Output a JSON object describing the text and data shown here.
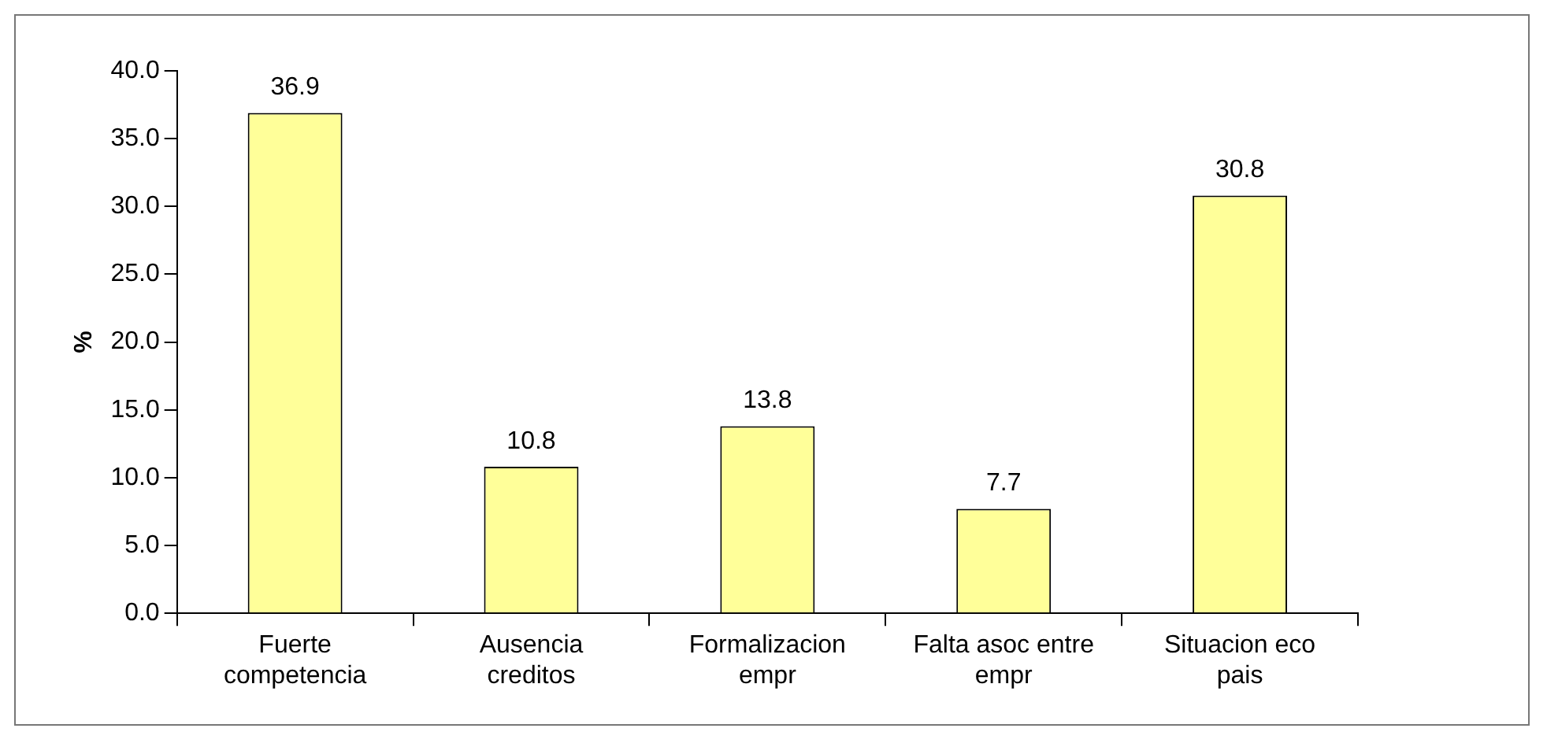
{
  "chart_data": {
    "type": "bar",
    "ylabel": "%",
    "categories": [
      "Fuerte competencia",
      "Ausencia creditos",
      "Formalizacion empr",
      "Falta asoc entre empr",
      "Situacion eco pais"
    ],
    "values": [
      36.9,
      10.8,
      13.8,
      7.7,
      30.8
    ],
    "color": "#ffff99",
    "ylim": [
      0,
      40
    ],
    "yticks": [
      {
        "value": 0,
        "label": "0.0"
      },
      {
        "value": 5,
        "label": "5.0"
      },
      {
        "value": 10,
        "label": "10.0"
      },
      {
        "value": 15,
        "label": "15.0"
      },
      {
        "value": 20,
        "label": "20.0"
      },
      {
        "value": 25,
        "label": "25.0"
      },
      {
        "value": 30,
        "label": "30.0"
      },
      {
        "value": 35,
        "label": "35.0"
      },
      {
        "value": 40,
        "label": "40.0"
      }
    ],
    "grid": false,
    "legend": false,
    "data_labels": true
  }
}
